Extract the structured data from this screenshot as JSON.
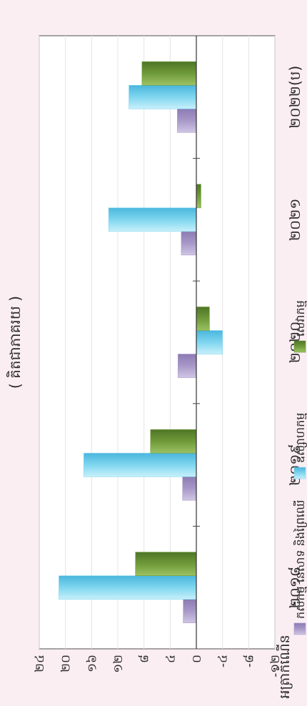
{
  "chart_data": {
    "type": "bar",
    "orientation": "rotated-90",
    "subtitle": "( គិតជាភាគរយ )",
    "ylabel": "អត្រាកំណើន",
    "categories": [
      "២០១៨",
      "២០១៩",
      "២០២០",
      "២០២១",
      "២០២២(ប)"
    ],
    "series": [
      {
        "name": "កសិកម្ម នេសាទ និងព្រៃឈើ",
        "color": "#a898c8",
        "values": [
          2.0,
          2.1,
          2.8,
          2.3,
          2.9
        ]
      },
      {
        "name": "ឧស្សាហកម្ម",
        "color": "#7fd6ef",
        "values": [
          21.0,
          17.2,
          -4.0,
          13.4,
          10.3
        ]
      },
      {
        "name": "សេវាកម្ម",
        "color": "#6f9a3a",
        "values": [
          9.3,
          7.0,
          -2.0,
          -0.7,
          8.3
        ]
      }
    ],
    "ylim": [
      -12,
      24
    ],
    "ticks": [
      24,
      20,
      16,
      12,
      8,
      4,
      0,
      -4,
      -8,
      -12
    ],
    "tick_labels": [
      "២៤",
      "២០",
      "១៦",
      "១២",
      "៨",
      "៤",
      "០",
      "-៤",
      "-៨",
      "-១២"
    ],
    "legend_position": "bottom",
    "grid": true
  }
}
